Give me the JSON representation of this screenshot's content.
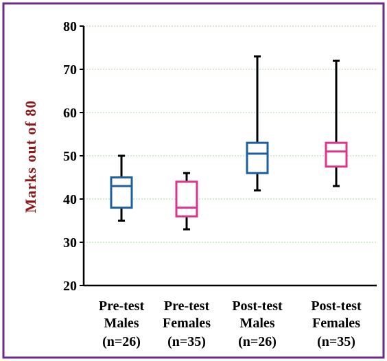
{
  "colors": {
    "frame": "#6a2a86",
    "ylabel": "#8b1a1a",
    "grid": "#a9d9a9",
    "axis": "#000000"
  },
  "chart_data": {
    "type": "boxplot",
    "title": "",
    "ylabel": "Marks out of 80",
    "xlabel": "",
    "ylim": [
      20,
      80
    ],
    "yticks": [
      20,
      30,
      40,
      50,
      60,
      70,
      80
    ],
    "grid": "horizontal dotted",
    "categories": [
      {
        "lines": [
          "Pre-test",
          "Males",
          "(n=26)"
        ]
      },
      {
        "lines": [
          "Pre-test",
          "Females",
          "(n=35)"
        ]
      },
      {
        "lines": [
          "Post-test",
          "Males",
          "(n=26)"
        ]
      },
      {
        "lines": [
          "Post-test",
          "Females",
          "(n=35)"
        ]
      }
    ],
    "boxes": [
      {
        "min": 35,
        "q1": 38,
        "median": 43,
        "q3": 45,
        "max": 50,
        "color": "#1f5fa0"
      },
      {
        "min": 33,
        "q1": 36,
        "median": 38,
        "q3": 44,
        "max": 46,
        "color": "#e0338a"
      },
      {
        "min": 42,
        "q1": 46,
        "median": 50.5,
        "q3": 53,
        "max": 73,
        "color": "#1f5fa0"
      },
      {
        "min": 43,
        "q1": 47.5,
        "median": 51,
        "q3": 53,
        "max": 72,
        "color": "#e0338a"
      }
    ]
  }
}
